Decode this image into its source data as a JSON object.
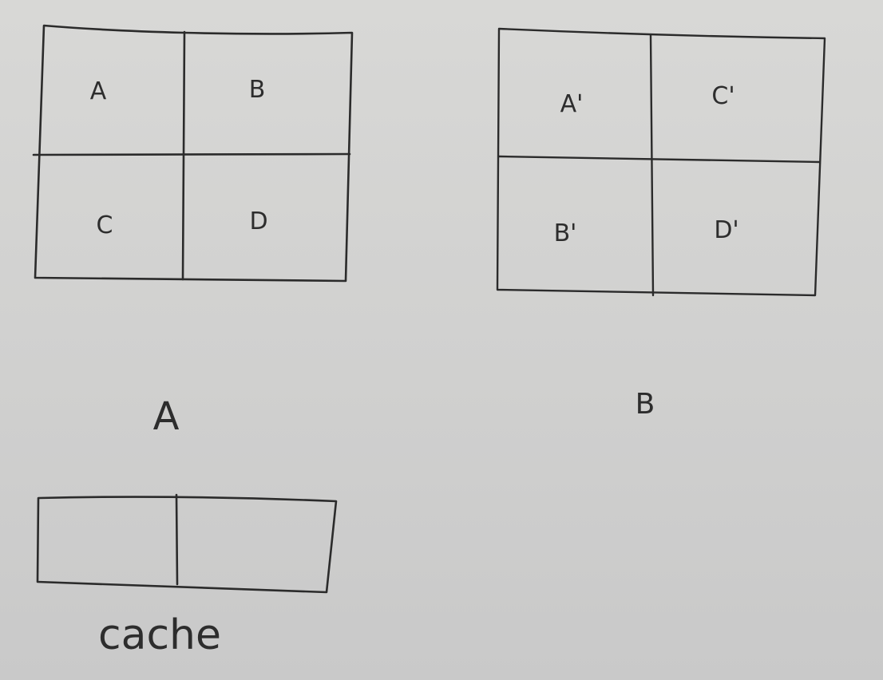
{
  "matrix_a": {
    "cells": [
      "A",
      "B",
      "C",
      "D"
    ],
    "caption": "A"
  },
  "matrix_b": {
    "cells": [
      "A'",
      "C'",
      "B'",
      "D'"
    ],
    "caption": "B"
  },
  "cache": {
    "slots": 2,
    "label": "cache"
  },
  "ink_color": "#2b2b2b",
  "paper_color": "#d4d4d3"
}
